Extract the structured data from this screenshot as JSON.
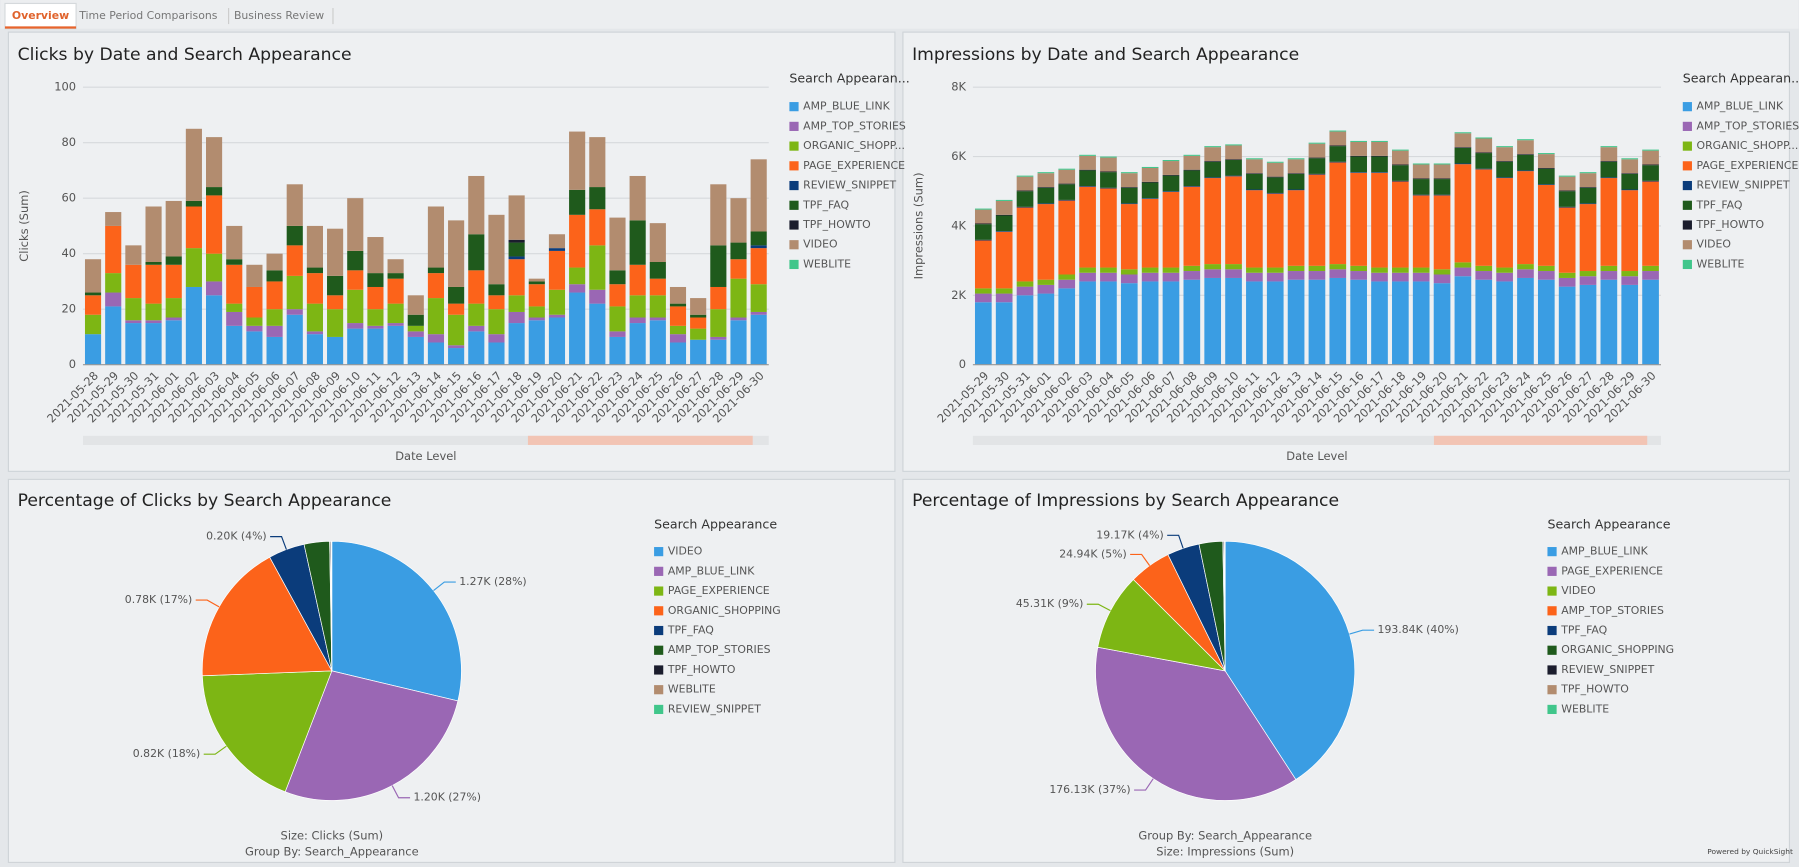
{
  "tabs": [
    "Overview",
    "Time Period Comparisons",
    "Business Review"
  ],
  "footer": "Powered by QuickSight",
  "chart_data": [
    {
      "type": "stacked_bar",
      "title": "Clicks by Date and Search Appearance",
      "y_label": "Clicks (Sum)",
      "x_label": "Date Level",
      "legend_title": "Search Appearan...",
      "categories": [
        "2021-05-28",
        "2021-05-29",
        "2021-05-30",
        "2021-05-31",
        "2021-06-01",
        "2021-06-02",
        "2021-06-03",
        "2021-06-04",
        "2021-06-05",
        "2021-06-06",
        "2021-06-07",
        "2021-06-08",
        "2021-06-09",
        "2021-06-10",
        "2021-06-11",
        "2021-06-12",
        "2021-06-13",
        "2021-06-14",
        "2021-06-15",
        "2021-06-16",
        "2021-06-17",
        "2021-06-18",
        "2021-06-19",
        "2021-06-20",
        "2021-06-21",
        "2021-06-22",
        "2021-06-23",
        "2021-06-24",
        "2021-06-25",
        "2021-06-26",
        "2021-06-27",
        "2021-06-28",
        "2021-06-29",
        "2021-06-30"
      ],
      "ylim": [
        0,
        100
      ],
      "yticks": [
        0,
        20,
        40,
        60,
        80,
        100
      ],
      "grid": true,
      "series": [
        {
          "name": "AMP_BLUE_LINK",
          "color": "#3a9de3",
          "values": [
            11,
            21,
            15,
            15,
            16,
            28,
            25,
            14,
            12,
            10,
            18,
            11,
            10,
            13,
            13,
            14,
            10,
            8,
            6,
            12,
            8,
            15,
            16,
            17,
            26,
            22,
            10,
            15,
            16,
            8,
            9,
            9,
            16,
            18
          ]
        },
        {
          "name": "AMP_TOP_STORIES",
          "color": "#9a67b4",
          "values": [
            0,
            5,
            1,
            1,
            1,
            0,
            5,
            5,
            2,
            4,
            2,
            1,
            0,
            2,
            1,
            1,
            2,
            3,
            1,
            2,
            3,
            4,
            1,
            1,
            3,
            5,
            2,
            2,
            1,
            3,
            0,
            1,
            1,
            1
          ]
        },
        {
          "name": "ORGANIC_SHOPP...",
          "color": "#7db614",
          "values": [
            7,
            7,
            8,
            6,
            7,
            14,
            10,
            3,
            3,
            6,
            12,
            10,
            10,
            12,
            6,
            7,
            2,
            13,
            11,
            8,
            9,
            6,
            4,
            9,
            6,
            16,
            9,
            8,
            8,
            3,
            4,
            10,
            14,
            10
          ]
        },
        {
          "name": "PAGE_EXPERIENCE",
          "color": "#fc631a",
          "values": [
            7,
            17,
            12,
            14,
            12,
            15,
            21,
            14,
            11,
            10,
            11,
            11,
            5,
            7,
            8,
            9,
            0,
            9,
            4,
            12,
            5,
            13,
            8,
            14,
            19,
            13,
            8,
            11,
            6,
            7,
            4,
            8,
            7,
            13
          ]
        },
        {
          "name": "REVIEW_SNIPPET",
          "color": "#0b3c7b",
          "values": [
            0,
            0,
            0,
            0,
            0,
            0,
            0,
            0,
            0,
            0,
            0,
            0,
            0,
            0,
            0,
            0,
            0,
            0,
            0,
            0,
            0,
            1,
            0,
            1,
            0,
            0,
            0,
            0,
            0,
            0,
            0,
            0,
            0,
            1
          ]
        },
        {
          "name": "TPF_FAQ",
          "color": "#1f5a1c",
          "values": [
            1,
            0,
            0,
            1,
            3,
            2,
            3,
            2,
            0,
            4,
            7,
            2,
            7,
            7,
            5,
            2,
            4,
            2,
            6,
            13,
            4,
            5,
            1,
            0,
            9,
            8,
            5,
            16,
            6,
            1,
            1,
            15,
            6,
            5
          ]
        },
        {
          "name": "TPF_HOWTO",
          "color": "#1b1d2d",
          "values": [
            0,
            0,
            0,
            0,
            0,
            0,
            0,
            0,
            0,
            0,
            0,
            0,
            0,
            0,
            0,
            0,
            0,
            0,
            0,
            0,
            0,
            1,
            0,
            0,
            0,
            0,
            0,
            0,
            0,
            0,
            0,
            0,
            0,
            0
          ]
        },
        {
          "name": "VIDEO",
          "color": "#b28c6f",
          "values": [
            12,
            5,
            7,
            20,
            20,
            26,
            18,
            12,
            8,
            6,
            15,
            15,
            17,
            19,
            13,
            5,
            7,
            22,
            24,
            21,
            25,
            16,
            1,
            5,
            21,
            18,
            19,
            16,
            14,
            6,
            6,
            22,
            16,
            26
          ]
        },
        {
          "name": "WEBLITE",
          "color": "#40c68b",
          "values": [
            0,
            0,
            0,
            0,
            0,
            0,
            0,
            0,
            0,
            0,
            0,
            0,
            0,
            0,
            0,
            0,
            0,
            0,
            0,
            0,
            0,
            0,
            0,
            0,
            0,
            0,
            0,
            0,
            0,
            0,
            0,
            0,
            0,
            0
          ]
        }
      ]
    },
    {
      "type": "stacked_bar",
      "title": "Impressions by Date and Search Appearance",
      "y_label": "Impressions (Sum)",
      "x_label": "Date Level",
      "legend_title": "Search Appearan...",
      "categories": [
        "2021-05-29",
        "2021-05-30",
        "2021-05-31",
        "2021-06-01",
        "2021-06-02",
        "2021-06-03",
        "2021-06-04",
        "2021-06-05",
        "2021-06-06",
        "2021-06-07",
        "2021-06-08",
        "2021-06-09",
        "2021-06-10",
        "2021-06-11",
        "2021-06-12",
        "2021-06-13",
        "2021-06-14",
        "2021-06-15",
        "2021-06-16",
        "2021-06-17",
        "2021-06-18",
        "2021-06-19",
        "2021-06-20",
        "2021-06-21",
        "2021-06-22",
        "2021-06-23",
        "2021-06-24",
        "2021-06-25",
        "2021-06-26",
        "2021-06-27",
        "2021-06-28",
        "2021-06-29",
        "2021-06-30"
      ],
      "ylim": [
        0,
        8000
      ],
      "yticks": [
        0,
        {
          "value": 2000,
          "label": "2K"
        },
        {
          "value": 4000,
          "label": "4K"
        },
        {
          "value": 6000,
          "label": "6K"
        },
        {
          "value": 8000,
          "label": "8K"
        }
      ],
      "grid": true,
      "series": [
        {
          "name": "AMP_BLUE_LINK",
          "color": "#3a9de3",
          "values": [
            1800,
            1800,
            2000,
            2050,
            2200,
            2400,
            2400,
            2350,
            2400,
            2400,
            2450,
            2500,
            2500,
            2400,
            2400,
            2450,
            2450,
            2500,
            2450,
            2400,
            2400,
            2400,
            2350,
            2550,
            2450,
            2400,
            2500,
            2450,
            2250,
            2300,
            2450,
            2300,
            2450
          ]
        },
        {
          "name": "AMP_TOP_STORIES",
          "color": "#9a67b4",
          "values": [
            250,
            250,
            250,
            250,
            250,
            250,
            250,
            250,
            250,
            250,
            250,
            250,
            250,
            250,
            250,
            250,
            250,
            250,
            250,
            250,
            250,
            250,
            250,
            250,
            250,
            250,
            250,
            250,
            250,
            250,
            250,
            250,
            250
          ]
        },
        {
          "name": "ORGANIC_SHOPP...",
          "color": "#7db614",
          "values": [
            150,
            150,
            150,
            150,
            150,
            150,
            150,
            150,
            150,
            150,
            150,
            150,
            150,
            150,
            150,
            150,
            150,
            150,
            150,
            150,
            150,
            150,
            150,
            150,
            150,
            150,
            150,
            150,
            150,
            150,
            150,
            150,
            150
          ]
        },
        {
          "name": "PAGE_EXPERIENCE",
          "color": "#fc631a",
          "values": [
            1380,
            1630,
            2130,
            2180,
            2130,
            2330,
            2280,
            1880,
            1980,
            2180,
            2280,
            2480,
            2530,
            2230,
            2130,
            2180,
            2630,
            2930,
            2680,
            2730,
            2480,
            2080,
            2130,
            2830,
            2780,
            2580,
            2680,
            2330,
            1880,
            1930,
            2530,
            2330,
            2430
          ]
        },
        {
          "name": "REVIEW_SNIPPET",
          "color": "#0b3c7b",
          "values": [
            20,
            20,
            20,
            20,
            20,
            20,
            20,
            20,
            20,
            20,
            20,
            20,
            20,
            20,
            20,
            20,
            20,
            20,
            20,
            20,
            20,
            20,
            20,
            20,
            20,
            20,
            20,
            20,
            20,
            20,
            20,
            20,
            20
          ]
        },
        {
          "name": "TPF_FAQ",
          "color": "#1f5a1c",
          "values": [
            450,
            450,
            450,
            450,
            450,
            450,
            450,
            450,
            450,
            450,
            450,
            450,
            450,
            450,
            450,
            450,
            450,
            450,
            450,
            450,
            450,
            450,
            450,
            450,
            450,
            450,
            450,
            450,
            450,
            450,
            450,
            450,
            450
          ]
        },
        {
          "name": "TPF_HOWTO",
          "color": "#1b1d2d",
          "values": [
            20,
            20,
            20,
            20,
            20,
            20,
            20,
            20,
            20,
            20,
            20,
            20,
            20,
            20,
            20,
            20,
            20,
            20,
            20,
            20,
            20,
            20,
            20,
            20,
            20,
            20,
            20,
            20,
            20,
            20,
            20,
            20,
            20
          ]
        },
        {
          "name": "VIDEO",
          "color": "#b28c6f",
          "values": [
            400,
            400,
            400,
            400,
            400,
            400,
            400,
            400,
            400,
            400,
            400,
            400,
            400,
            400,
            400,
            400,
            400,
            400,
            400,
            400,
            400,
            400,
            400,
            400,
            400,
            400,
            400,
            400,
            400,
            400,
            400,
            400,
            400
          ]
        },
        {
          "name": "WEBLITE",
          "color": "#40c68b",
          "values": [
            30,
            30,
            30,
            30,
            30,
            30,
            30,
            30,
            30,
            30,
            30,
            30,
            30,
            30,
            30,
            30,
            30,
            30,
            30,
            30,
            30,
            30,
            30,
            30,
            30,
            30,
            30,
            30,
            30,
            30,
            30,
            30,
            30
          ]
        }
      ]
    },
    {
      "type": "pie",
      "title": "Percentage of Clicks by Search Appearance",
      "legend_title": "Search Appearance",
      "footnotes": [
        "Size: Clicks (Sum)",
        "Group By: Search_Appearance"
      ],
      "categories": [
        "VIDEO",
        "AMP_BLUE_LINK",
        "PAGE_EXPERIENCE",
        "ORGANIC_SHOPPING",
        "TPF_FAQ",
        "AMP_TOP_STORIES",
        "TPF_HOWTO",
        "WEBLITE",
        "REVIEW_SNIPPET"
      ],
      "values": [
        1270,
        1200,
        820,
        780,
        200,
        140,
        6,
        4,
        2
      ],
      "value_labels": [
        "1.27K (28%)",
        "1.20K (27%)",
        "0.82K (18%)",
        "0.78K (17%)",
        "0.20K (4%)",
        null,
        null,
        null,
        null
      ],
      "colors": [
        "#3a9de3",
        "#9a67b4",
        "#7db614",
        "#fc631a",
        "#0b3c7b",
        "#1f5a1c",
        "#1b1d2d",
        "#b28c6f",
        "#40c68b"
      ]
    },
    {
      "type": "pie",
      "title": "Percentage of Impressions by Search Appearance",
      "legend_title": "Search Appearance",
      "footnotes": [
        "Group By: Search_Appearance",
        "Size: Impressions (Sum)"
      ],
      "categories": [
        "AMP_BLUE_LINK",
        "PAGE_EXPERIENCE",
        "VIDEO",
        "AMP_TOP_STORIES",
        "TPF_FAQ",
        "ORGANIC_SHOPPING",
        "REVIEW_SNIPPET",
        "TPF_HOWTO",
        "WEBLITE"
      ],
      "values": [
        193840,
        176130,
        45310,
        24940,
        19170,
        14000,
        600,
        500,
        300
      ],
      "value_labels": [
        "193.84K (40%)",
        "176.13K (37%)",
        "45.31K (9%)",
        "24.94K (5%)",
        "19.17K (4%)",
        null,
        null,
        null,
        null
      ],
      "colors": [
        "#3a9de3",
        "#9a67b4",
        "#7db614",
        "#fc631a",
        "#0b3c7b",
        "#1f5a1c",
        "#1b1d2d",
        "#b28c6f",
        "#40c68b"
      ]
    }
  ]
}
